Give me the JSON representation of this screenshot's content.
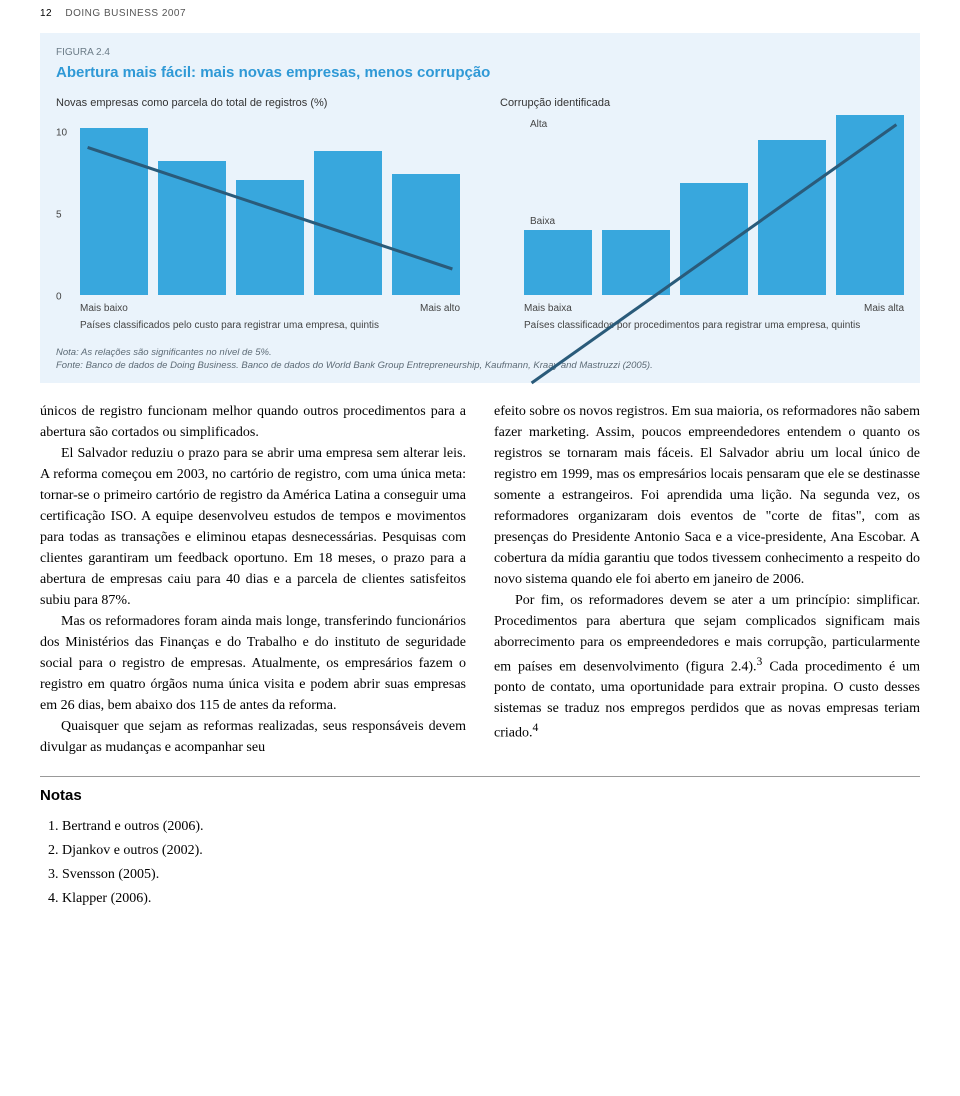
{
  "header": {
    "page_number": "12",
    "running_head": "DOING BUSINESS 2007"
  },
  "figure": {
    "caption": "FIGURA 2.4",
    "title": "Abertura mais fácil: mais novas empresas, menos corrupção",
    "left_chart": {
      "type": "bar",
      "subtitle": "Novas empresas como parcela do total de registros (%)",
      "yticks": [
        "10",
        "5",
        "0"
      ],
      "ylim_top": 11,
      "values": [
        10.2,
        8.2,
        7.0,
        8.8,
        7.4
      ],
      "trend_y1_pct": 8,
      "trend_y2_pct": 40,
      "bar_color": "#38a7dd",
      "axis_left": "Mais baixo",
      "axis_right": "Mais alto",
      "axis_caption": "Países classificados pelo custo para registrar uma empresa, quintis"
    },
    "right_chart": {
      "type": "bar",
      "subtitle": "Corrupção identificada",
      "values_rel": [
        0.36,
        0.36,
        0.62,
        0.86,
        1.0
      ],
      "trend_y1_pct": 70,
      "trend_y2_pct": 2,
      "bar_color": "#38a7dd",
      "label_top": "Alta",
      "label_bottom": "Baixa",
      "axis_left": "Mais baixa",
      "axis_right": "Mais alta",
      "axis_caption": "Países classificados por procedimentos para registrar uma empresa, quintis"
    },
    "note_line1": "Nota: As relações são significantes no nível de 5%.",
    "note_line2": "Fonte: Banco de dados de Doing Business. Banco de dados do World Bank Group Entrepreneurship, Kaufmann, Kraay and Mastruzzi (2005).",
    "panel_bg": "#eaf3fb",
    "title_color": "#2f99d6",
    "trend_color": "#2a5b7a"
  },
  "body": {
    "left": {
      "p1": "únicos de registro funcionam melhor quando outros procedimentos para a abertura são cortados ou simplificados.",
      "p2": "El Salvador reduziu o prazo para se abrir uma empresa sem alterar leis. A reforma começou em 2003, no cartório de registro, com uma única meta: tornar-se o primeiro cartório de registro da América Latina a conseguir uma certificação ISO. A equipe desenvolveu estudos de tempos e movimentos para todas as transações e eliminou etapas desnecessárias. Pesquisas com clientes garantiram um feedback oportuno. Em 18 meses, o prazo para a abertura de empresas caiu para 40 dias e a parcela de clientes satisfeitos subiu para 87%.",
      "p3": "Mas os reformadores foram ainda mais longe, transferindo funcionários dos Ministérios das Finanças e do Trabalho e do instituto de seguridade social para o registro de empresas. Atualmente, os empresários fazem o registro em quatro órgãos numa única visita e podem abrir suas empresas em 26 dias, bem abaixo dos 115 de antes da reforma.",
      "p4": "Quaisquer que sejam as reformas realizadas, seus responsáveis devem divulgar as mudanças e acompanhar seu"
    },
    "right": {
      "p1": "efeito sobre os novos registros. Em sua maioria, os reformadores não sabem fazer marketing. Assim, poucos empreendedores entendem o quanto os registros se tornaram mais fáceis. El Salvador abriu um local único de registro em 1999, mas os empresários locais pensaram que ele se destinasse somente a estrangeiros. Foi aprendida uma lição. Na segunda vez, os reformadores organizaram dois eventos de \"corte de fitas\", com as presenças do Presidente Antonio Saca e a vice-presidente, Ana Escobar. A cobertura da mídia garantiu que todos tivessem conhecimento a respeito do novo sistema quando ele foi aberto em janeiro de 2006.",
      "p2_a": "Por fim, os reformadores devem se ater a um princípio: simplificar. Procedimentos para abertura que sejam complicados significam mais aborrecimento para os empreendedores e mais corrupção, particularmente em países em desenvolvimento (figura 2.4).",
      "p2_sup": "3",
      "p2_b": " Cada procedimento é um ponto de contato, uma oportunidade para extrair propina. O custo desses sistemas se traduz nos empregos perdidos que as novas empresas teriam criado.",
      "p2_sup2": "4"
    }
  },
  "notes": {
    "title": "Notas",
    "items": [
      "Bertrand e outros (2006).",
      "Djankov e outros (2002).",
      "Svensson (2005).",
      "Klapper (2006)."
    ]
  }
}
